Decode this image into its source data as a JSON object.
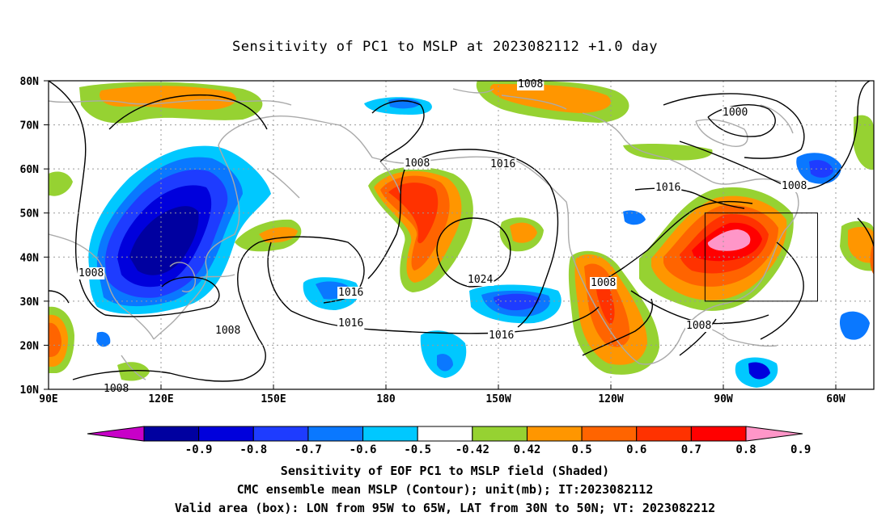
{
  "title": "Sensitivity of PC1 to MSLP at 2023082112 +1.0 day",
  "map": {
    "lat_labels": [
      "80N",
      "70N",
      "60N",
      "50N",
      "40N",
      "30N",
      "20N",
      "10N"
    ],
    "lon_labels": [
      "90E",
      "120E",
      "150E",
      "180",
      "150W",
      "120W",
      "90W",
      "60W"
    ],
    "lat_range": [
      10,
      80
    ],
    "lon_range": [
      90,
      310
    ],
    "contour_labels": [
      "1008",
      "1000",
      "1008",
      "1008",
      "1016",
      "1016",
      "1008",
      "1016",
      "1024",
      "1016",
      "1016",
      "1008",
      "1008",
      "1008",
      "1008"
    ],
    "valid_box": {
      "lon": [
        -95,
        -65
      ],
      "lat": [
        30,
        50
      ]
    }
  },
  "colorbar": {
    "labels": [
      "-0.9",
      "-0.8",
      "-0.7",
      "-0.6",
      "-0.5",
      "-0.42",
      "0.42",
      "0.5",
      "0.6",
      "0.7",
      "0.8",
      "0.9"
    ],
    "colors": [
      "#c800c8",
      "#0000a0",
      "#0000dc",
      "#1e3cff",
      "#0a78ff",
      "#00c8ff",
      "#ffffff",
      "#96d232",
      "#ff9600",
      "#ff6400",
      "#ff3200",
      "#ff0000",
      "#ff96c8"
    ]
  },
  "colors": {
    "coast": "#aaaaaa",
    "contour": "#000000",
    "grid": "#999999",
    "box": "#000000"
  },
  "footer": {
    "line1": "Sensitivity of EOF PC1 to MSLP field (Shaded)",
    "line2": "CMC ensemble mean MSLP (Contour); unit(mb); IT:2023082112",
    "line3": "Valid area (box): LON from 95W to 65W, LAT from 30N to 50N; VT: 2023082212"
  }
}
